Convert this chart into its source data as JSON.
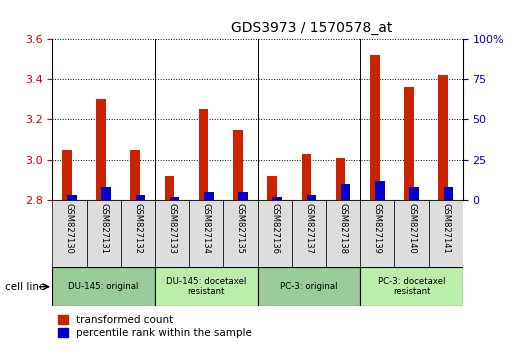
{
  "title": "GDS3973 / 1570578_at",
  "samples": [
    "GSM827130",
    "GSM827131",
    "GSM827132",
    "GSM827133",
    "GSM827134",
    "GSM827135",
    "GSM827136",
    "GSM827137",
    "GSM827138",
    "GSM827139",
    "GSM827140",
    "GSM827141"
  ],
  "transformed_count": [
    3.05,
    3.3,
    3.05,
    2.92,
    3.25,
    3.15,
    2.92,
    3.03,
    3.01,
    3.52,
    3.36,
    3.42
  ],
  "percentile_rank": [
    3,
    8,
    3,
    2,
    5,
    5,
    2,
    3,
    10,
    12,
    8,
    8
  ],
  "ylim_left": [
    2.8,
    3.6
  ],
  "ylim_right": [
    0,
    100
  ],
  "yticks_left": [
    2.8,
    3.0,
    3.2,
    3.4,
    3.6
  ],
  "yticks_right": [
    0,
    25,
    50,
    75,
    100
  ],
  "bar_color_red": "#cc2200",
  "bar_color_blue": "#0000cc",
  "cell_line_groups": [
    {
      "label": "DU-145: original",
      "start": 0,
      "end": 2,
      "color": "#99cc99"
    },
    {
      "label": "DU-145: docetaxel\nresistant",
      "start": 3,
      "end": 5,
      "color": "#bbeeaa"
    },
    {
      "label": "PC-3: original",
      "start": 6,
      "end": 8,
      "color": "#99cc99"
    },
    {
      "label": "PC-3: docetaxel\nresistant",
      "start": 9,
      "end": 11,
      "color": "#bbeeaa"
    }
  ],
  "legend_red_label": "transformed count",
  "legend_blue_label": "percentile rank within the sample",
  "cell_line_label": "cell line",
  "background_color": "#ffffff",
  "plot_bg_color": "#ffffff",
  "sample_bg_color": "#dddddd",
  "title_fontsize": 10,
  "axis_color_left": "#cc0000",
  "axis_color_right": "#0000cc"
}
